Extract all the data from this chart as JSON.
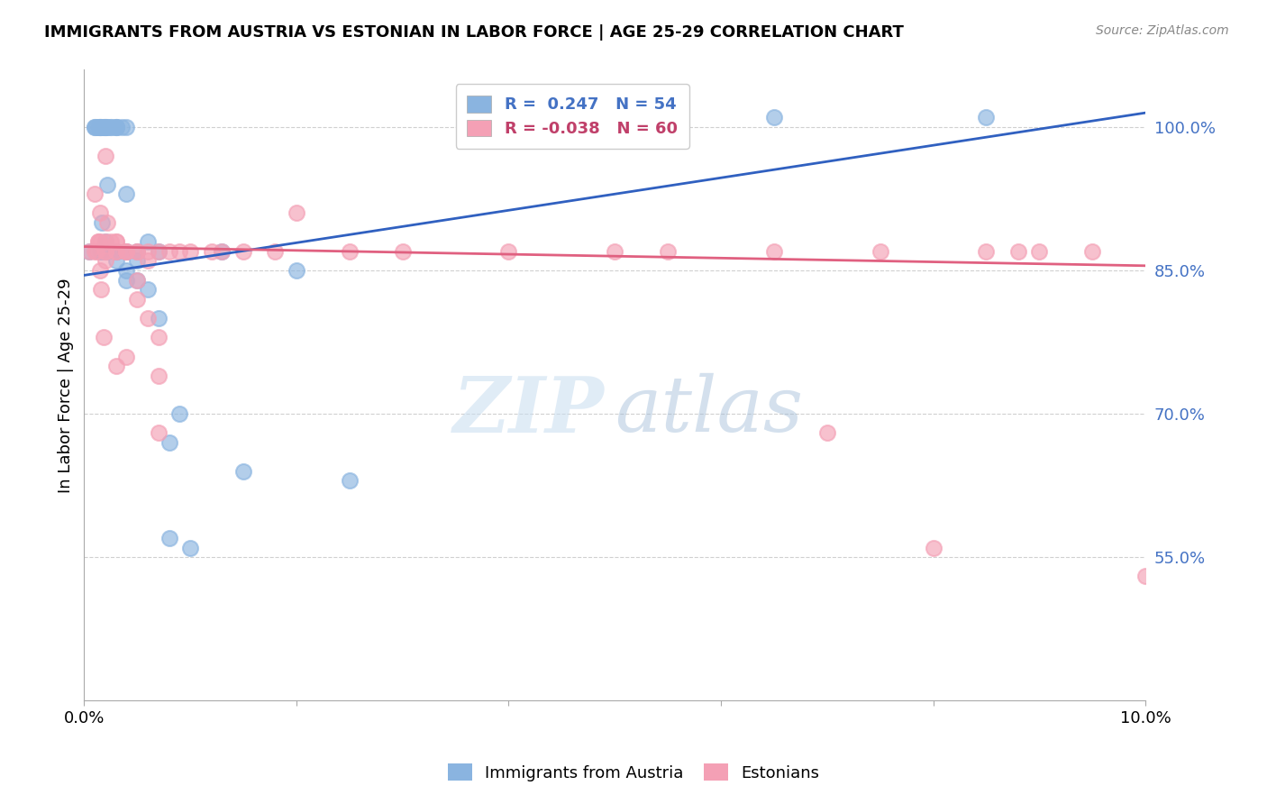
{
  "title": "IMMIGRANTS FROM AUSTRIA VS ESTONIAN IN LABOR FORCE | AGE 25-29 CORRELATION CHART",
  "source": "Source: ZipAtlas.com",
  "ylabel": "In Labor Force | Age 25-29",
  "xlim": [
    0.0,
    0.1
  ],
  "ylim": [
    0.4,
    1.06
  ],
  "xticks": [
    0.0,
    0.02,
    0.04,
    0.06,
    0.08,
    0.1
  ],
  "xticklabels": [
    "0.0%",
    "",
    "",
    "",
    "",
    "10.0%"
  ],
  "yticks": [
    0.55,
    0.7,
    0.85,
    1.0
  ],
  "yticklabels": [
    "55.0%",
    "70.0%",
    "85.0%",
    "100.0%"
  ],
  "blue_R": 0.247,
  "blue_N": 54,
  "pink_R": -0.038,
  "pink_N": 60,
  "blue_color": "#8ab4e0",
  "pink_color": "#f4a0b5",
  "blue_line_color": "#3060c0",
  "pink_line_color": "#e06080",
  "grid_color": "#d0d0d0",
  "legend_label_blue": "Immigrants from Austria",
  "legend_label_pink": "Estonians",
  "blue_line_x0": 0.0,
  "blue_line_y0": 0.845,
  "blue_line_x1": 0.1,
  "blue_line_y1": 1.015,
  "pink_line_x0": 0.0,
  "pink_line_y0": 0.875,
  "pink_line_x1": 0.1,
  "pink_line_y1": 0.855,
  "blue_x": [
    0.0005,
    0.001,
    0.001,
    0.0012,
    0.0014,
    0.0014,
    0.0015,
    0.0015,
    0.0015,
    0.0016,
    0.0016,
    0.0017,
    0.0017,
    0.0018,
    0.0018,
    0.002,
    0.002,
    0.002,
    0.002,
    0.002,
    0.0022,
    0.0022,
    0.0022,
    0.0025,
    0.0025,
    0.003,
    0.003,
    0.003,
    0.003,
    0.003,
    0.003,
    0.0035,
    0.004,
    0.004,
    0.004,
    0.004,
    0.004,
    0.005,
    0.005,
    0.005,
    0.006,
    0.006,
    0.007,
    0.007,
    0.008,
    0.008,
    0.009,
    0.01,
    0.013,
    0.015,
    0.02,
    0.025,
    0.065,
    0.085
  ],
  "blue_y": [
    0.87,
    1.0,
    1.0,
    1.0,
    1.0,
    1.0,
    1.0,
    1.0,
    0.87,
    1.0,
    1.0,
    0.9,
    0.87,
    1.0,
    1.0,
    1.0,
    1.0,
    1.0,
    0.88,
    0.87,
    1.0,
    0.94,
    0.87,
    1.0,
    1.0,
    1.0,
    1.0,
    1.0,
    0.87,
    0.87,
    0.86,
    1.0,
    1.0,
    0.93,
    0.87,
    0.85,
    0.84,
    0.87,
    0.86,
    0.84,
    0.88,
    0.83,
    0.87,
    0.8,
    0.67,
    0.57,
    0.7,
    0.56,
    0.87,
    0.64,
    0.85,
    0.63,
    1.01,
    1.01
  ],
  "pink_x": [
    0.0005,
    0.001,
    0.001,
    0.0012,
    0.0013,
    0.0013,
    0.0015,
    0.0015,
    0.0015,
    0.0016,
    0.0018,
    0.002,
    0.002,
    0.002,
    0.002,
    0.002,
    0.0022,
    0.0025,
    0.003,
    0.003,
    0.003,
    0.003,
    0.003,
    0.004,
    0.004,
    0.004,
    0.004,
    0.005,
    0.005,
    0.005,
    0.005,
    0.006,
    0.006,
    0.006,
    0.007,
    0.007,
    0.007,
    0.007,
    0.008,
    0.009,
    0.01,
    0.012,
    0.013,
    0.015,
    0.018,
    0.02,
    0.025,
    0.03,
    0.04,
    0.05,
    0.055,
    0.065,
    0.07,
    0.075,
    0.08,
    0.085,
    0.088,
    0.09,
    0.095,
    0.1
  ],
  "pink_y": [
    0.87,
    0.93,
    0.87,
    0.87,
    0.88,
    0.88,
    0.91,
    0.88,
    0.85,
    0.83,
    0.78,
    0.88,
    0.87,
    0.87,
    0.86,
    0.97,
    0.9,
    0.88,
    0.88,
    0.87,
    0.87,
    0.75,
    0.88,
    0.87,
    0.87,
    0.87,
    0.76,
    0.87,
    0.87,
    0.84,
    0.82,
    0.86,
    0.87,
    0.8,
    0.87,
    0.78,
    0.74,
    0.68,
    0.87,
    0.87,
    0.87,
    0.87,
    0.87,
    0.87,
    0.87,
    0.91,
    0.87,
    0.87,
    0.87,
    0.87,
    0.87,
    0.87,
    0.68,
    0.87,
    0.56,
    0.87,
    0.87,
    0.87,
    0.87,
    0.53
  ]
}
